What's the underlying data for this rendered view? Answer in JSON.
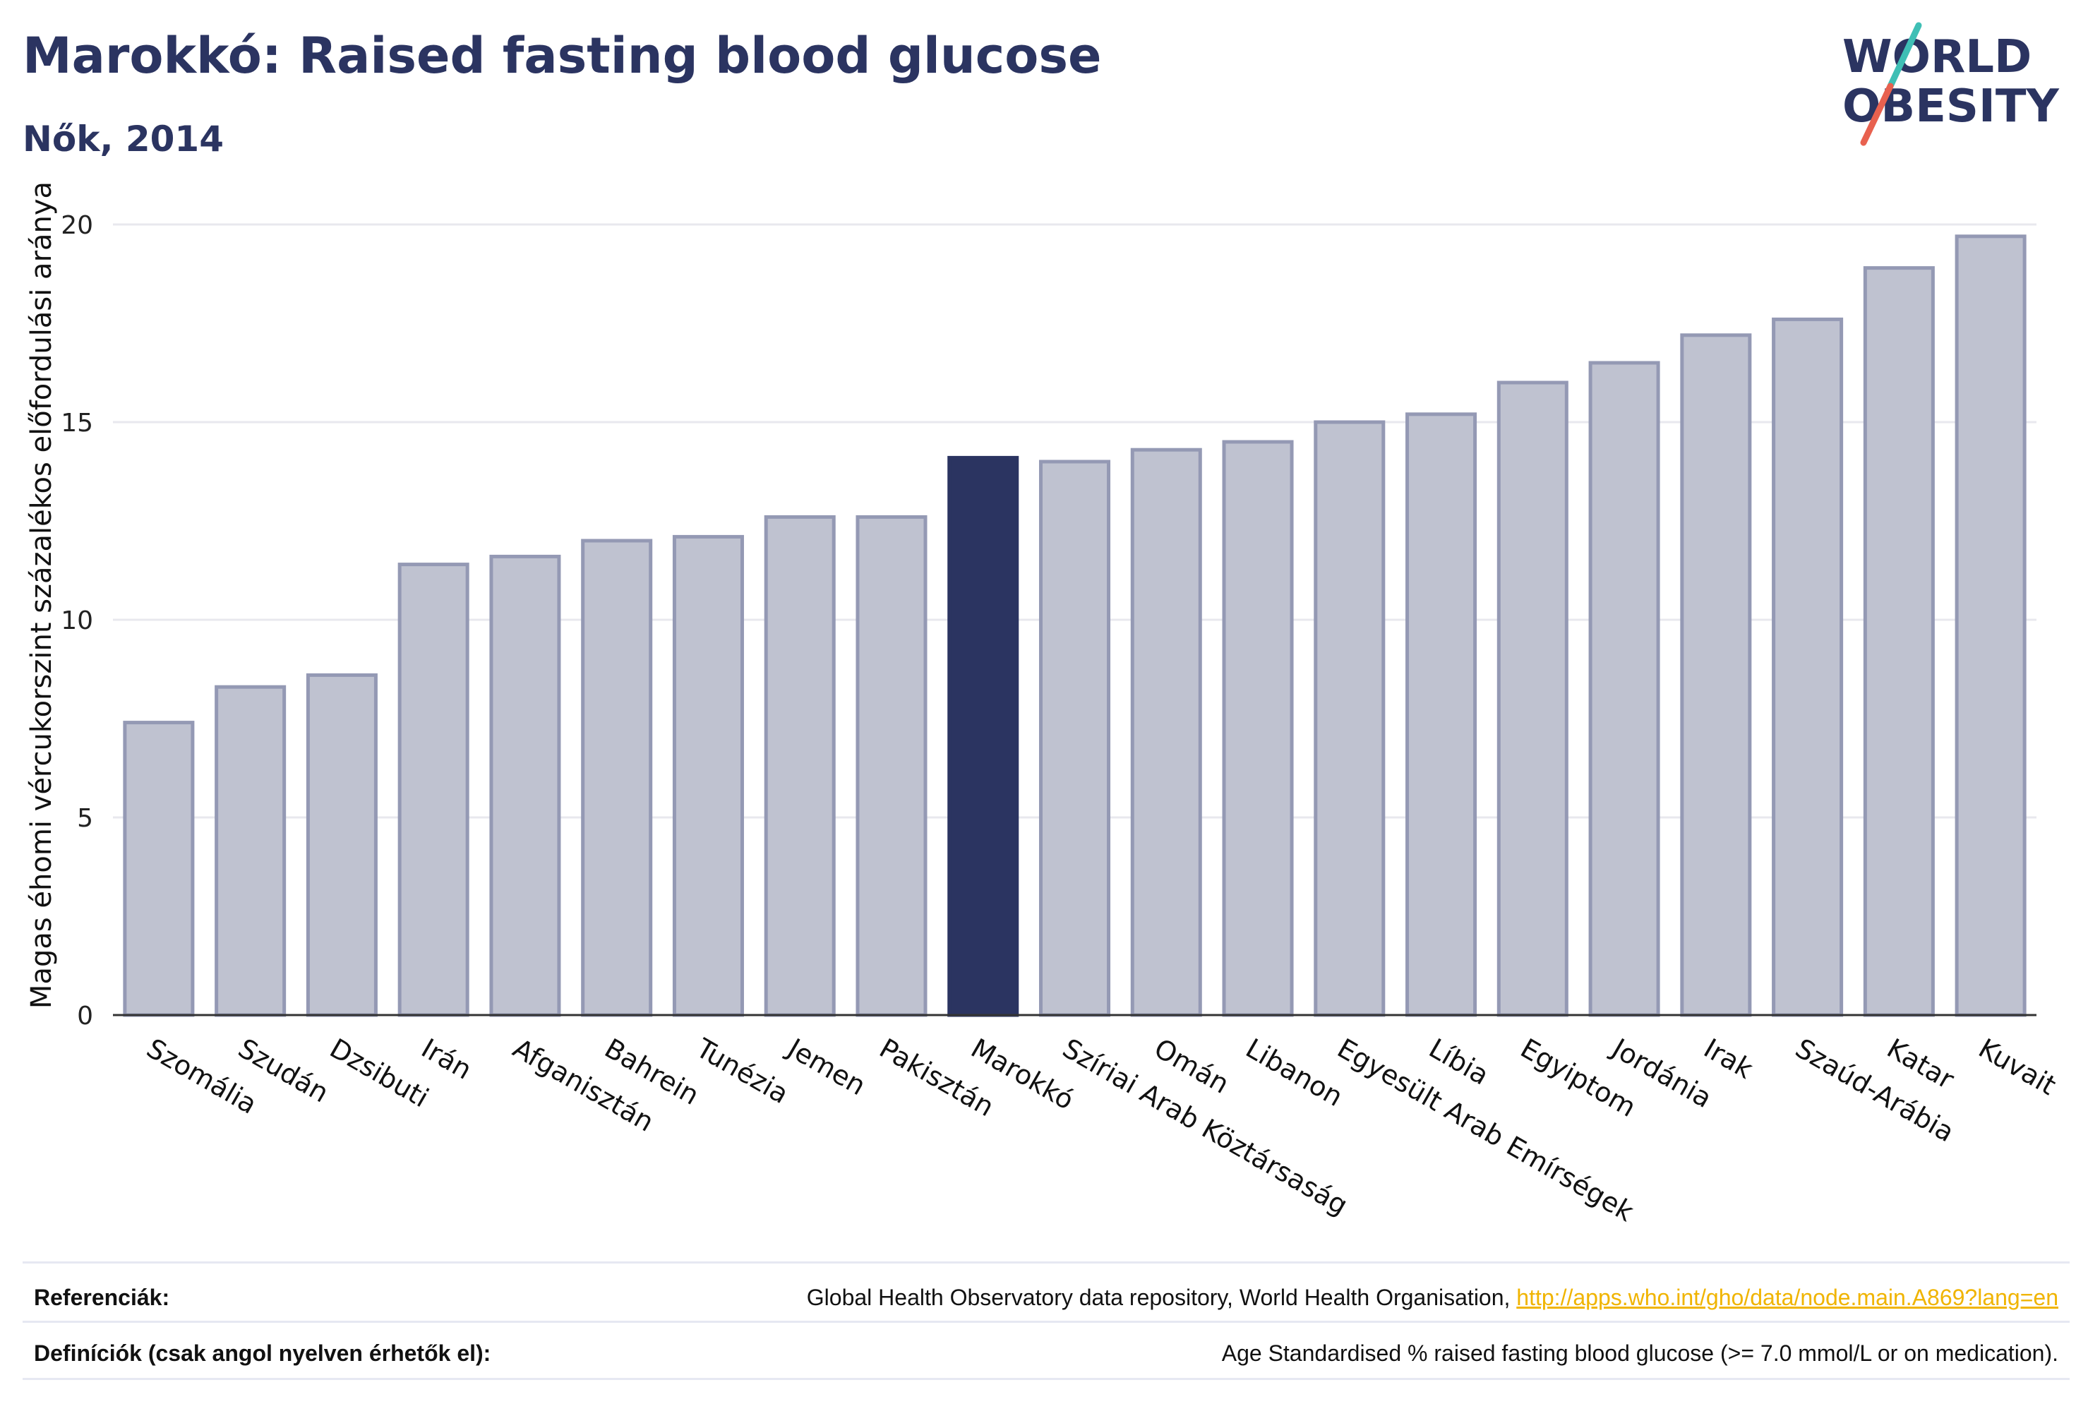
{
  "title": "Marokkó: Raised fasting blood glucose",
  "subtitle": "Nők, 2014",
  "logo": {
    "line1": "WORLD",
    "line2": "OBESITY"
  },
  "chart_data": {
    "type": "bar",
    "ylabel": "Magas éhomi vércukorszint százalékos előfordulási aránya",
    "xlabel": "",
    "ylim": [
      0,
      20
    ],
    "yticks": [
      0,
      5,
      10,
      15,
      20
    ],
    "grid": true,
    "categories": [
      "Szomália",
      "Szudán",
      "Dzsibuti",
      "Irán",
      "Afganisztán",
      "Bahrein",
      "Tunézia",
      "Jemen",
      "Pakisztán",
      "Marokkó",
      "Szíriai Arab Köztársaság",
      "Omán",
      "Libanon",
      "Egyesült Arab Emírségek",
      "Líbia",
      "Egyiptom",
      "Jordánia",
      "Irak",
      "Szaúd-Arábia",
      "Katar",
      "Kuvait"
    ],
    "values": [
      7.4,
      8.3,
      8.6,
      11.4,
      11.6,
      12.0,
      12.1,
      12.6,
      12.6,
      14.1,
      14.0,
      14.3,
      14.5,
      15.0,
      15.2,
      16.0,
      16.5,
      17.2,
      17.6,
      18.9,
      19.7
    ],
    "highlight": "Marokkó",
    "colors": {
      "bar": "#bfc2d0",
      "bar_border": "#9499b4",
      "highlight": "#2b3461",
      "grid": "#e8e8ee",
      "axis": "#333333"
    }
  },
  "footer": {
    "references_label": "Referenciák:",
    "references_text": "Global Health Observatory data repository, World Health Organisation,",
    "references_link": "http://apps.who.int/gho/data/node.main.A869?lang=en",
    "definitions_label": "Definíciók (csak angol nyelven érhetők el):",
    "definitions_text": "Age Standardised % raised fasting blood glucose (>= 7.0 mmol/L or on medication)."
  }
}
